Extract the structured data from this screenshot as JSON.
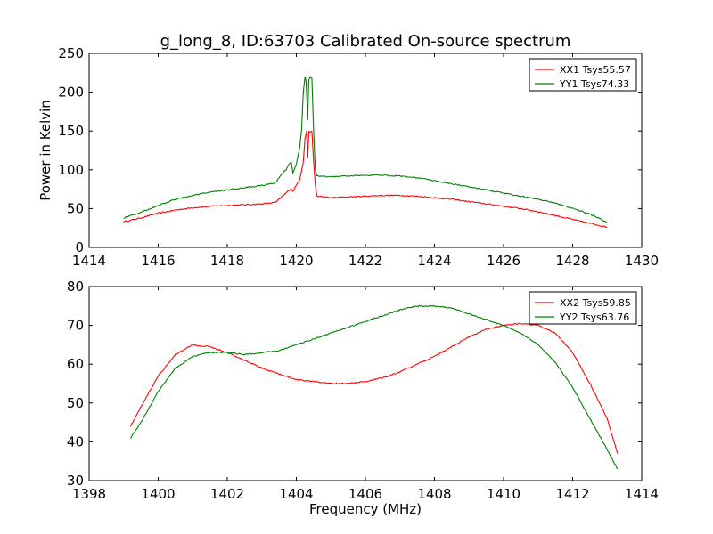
{
  "chart_data": [
    {
      "type": "line",
      "title": "g_long_8, ID:63703 Calibrated On-source spectrum",
      "xlabel": "",
      "ylabel": "Power in Kelvin",
      "xlim": [
        1414,
        1430
      ],
      "ylim": [
        0,
        250
      ],
      "xticks": [
        1414,
        1416,
        1418,
        1420,
        1422,
        1424,
        1426,
        1428,
        1430
      ],
      "yticks": [
        0,
        50,
        100,
        150,
        200,
        250
      ],
      "legend_position": "top-right",
      "colors": {
        "XX1": "#ff0000",
        "YY1": "#008000"
      },
      "series": [
        {
          "name": "XX1 Tsys55.57",
          "color": "#ff0000",
          "points": [
            [
              1415,
              33
            ],
            [
              1415.5,
              38
            ],
            [
              1416,
              44
            ],
            [
              1416.5,
              48
            ],
            [
              1417,
              51
            ],
            [
              1417.5,
              53
            ],
            [
              1418,
              54
            ],
            [
              1418.5,
              55
            ],
            [
              1419,
              56
            ],
            [
              1419.4,
              58
            ],
            [
              1419.5,
              62
            ],
            [
              1419.6,
              66
            ],
            [
              1419.7,
              70
            ],
            [
              1419.8,
              74
            ],
            [
              1419.85,
              76
            ],
            [
              1419.9,
              72
            ],
            [
              1420,
              80
            ],
            [
              1420.1,
              88
            ],
            [
              1420.2,
              110
            ],
            [
              1420.25,
              140
            ],
            [
              1420.3,
              150
            ],
            [
              1420.33,
              115
            ],
            [
              1420.36,
              150
            ],
            [
              1420.4,
              148
            ],
            [
              1420.45,
              150
            ],
            [
              1420.5,
              110
            ],
            [
              1420.55,
              80
            ],
            [
              1420.6,
              66
            ],
            [
              1421,
              64
            ],
            [
              1421.5,
              65
            ],
            [
              1422,
              66
            ],
            [
              1422.5,
              67
            ],
            [
              1423,
              67
            ],
            [
              1423.5,
              66
            ],
            [
              1424,
              64
            ],
            [
              1424.5,
              62
            ],
            [
              1425,
              59
            ],
            [
              1425.5,
              56
            ],
            [
              1426,
              53
            ],
            [
              1426.5,
              50
            ],
            [
              1427,
              46
            ],
            [
              1427.5,
              41
            ],
            [
              1428,
              36
            ],
            [
              1428.5,
              31
            ],
            [
              1429,
              26
            ]
          ]
        },
        {
          "name": "YY1 Tsys74.33",
          "color": "#008000",
          "points": [
            [
              1415,
              38
            ],
            [
              1415.5,
              45
            ],
            [
              1416,
              54
            ],
            [
              1416.5,
              62
            ],
            [
              1417,
              67
            ],
            [
              1417.5,
              71
            ],
            [
              1418,
              74
            ],
            [
              1418.5,
              77
            ],
            [
              1419,
              80
            ],
            [
              1419.4,
              83
            ],
            [
              1419.5,
              90
            ],
            [
              1419.6,
              96
            ],
            [
              1419.7,
              100
            ],
            [
              1419.8,
              108
            ],
            [
              1419.85,
              110
            ],
            [
              1419.9,
              96
            ],
            [
              1420,
              108
            ],
            [
              1420.1,
              130
            ],
            [
              1420.15,
              150
            ],
            [
              1420.2,
              200
            ],
            [
              1420.25,
              220
            ],
            [
              1420.28,
              215
            ],
            [
              1420.3,
              195
            ],
            [
              1420.33,
              165
            ],
            [
              1420.36,
              215
            ],
            [
              1420.4,
              220
            ],
            [
              1420.45,
              218
            ],
            [
              1420.5,
              150
            ],
            [
              1420.55,
              100
            ],
            [
              1420.6,
              92
            ],
            [
              1421,
              91
            ],
            [
              1421.5,
              92
            ],
            [
              1422,
              93
            ],
            [
              1422.5,
              93
            ],
            [
              1423,
              92
            ],
            [
              1423.5,
              90
            ],
            [
              1424,
              86
            ],
            [
              1424.5,
              82
            ],
            [
              1425,
              78
            ],
            [
              1425.5,
              74
            ],
            [
              1426,
              70
            ],
            [
              1426.5,
              66
            ],
            [
              1427,
              62
            ],
            [
              1427.5,
              57
            ],
            [
              1428,
              50
            ],
            [
              1428.5,
              43
            ],
            [
              1429,
              32
            ]
          ]
        }
      ]
    },
    {
      "type": "line",
      "title": "",
      "xlabel": "Frequency (MHz)",
      "ylabel": "",
      "xlim": [
        1398,
        1414
      ],
      "ylim": [
        30,
        80
      ],
      "xticks": [
        1398,
        1400,
        1402,
        1404,
        1406,
        1408,
        1410,
        1412,
        1414
      ],
      "yticks": [
        30,
        40,
        50,
        60,
        70,
        80
      ],
      "legend_position": "top-right",
      "colors": {
        "XX2": "#ff0000",
        "YY2": "#008000"
      },
      "series": [
        {
          "name": "XX2 Tsys59.85",
          "color": "#ff0000",
          "points": [
            [
              1399.2,
              44
            ],
            [
              1399.5,
              49
            ],
            [
              1400,
              57
            ],
            [
              1400.5,
              62.5
            ],
            [
              1401,
              65
            ],
            [
              1401.5,
              64.5
            ],
            [
              1402,
              63
            ],
            [
              1402.5,
              61
            ],
            [
              1403,
              59
            ],
            [
              1403.5,
              57.5
            ],
            [
              1404,
              56
            ],
            [
              1404.5,
              55.5
            ],
            [
              1405,
              55
            ],
            [
              1405.5,
              55
            ],
            [
              1406,
              55.5
            ],
            [
              1406.5,
              56.5
            ],
            [
              1407,
              58
            ],
            [
              1407.5,
              60
            ],
            [
              1408,
              62
            ],
            [
              1408.5,
              64.5
            ],
            [
              1409,
              67
            ],
            [
              1409.5,
              69
            ],
            [
              1410,
              70
            ],
            [
              1410.5,
              70.5
            ],
            [
              1411,
              70
            ],
            [
              1411.5,
              68
            ],
            [
              1412,
              63
            ],
            [
              1412.5,
              55
            ],
            [
              1413,
              46
            ],
            [
              1413.3,
              37
            ]
          ]
        },
        {
          "name": "YY2 Tsys63.76",
          "color": "#008000",
          "points": [
            [
              1399.2,
              41
            ],
            [
              1399.5,
              45
            ],
            [
              1400,
              53
            ],
            [
              1400.5,
              59
            ],
            [
              1401,
              62
            ],
            [
              1401.5,
              63
            ],
            [
              1402,
              63
            ],
            [
              1402.5,
              62.5
            ],
            [
              1403,
              63
            ],
            [
              1403.5,
              63.5
            ],
            [
              1404,
              65
            ],
            [
              1404.5,
              66.5
            ],
            [
              1405,
              68
            ],
            [
              1405.5,
              69.5
            ],
            [
              1406,
              71
            ],
            [
              1406.5,
              72.5
            ],
            [
              1407,
              74
            ],
            [
              1407.5,
              75
            ],
            [
              1408,
              75
            ],
            [
              1408.5,
              74.5
            ],
            [
              1409,
              73
            ],
            [
              1409.5,
              71.5
            ],
            [
              1410,
              70
            ],
            [
              1410.5,
              68
            ],
            [
              1411,
              65
            ],
            [
              1411.5,
              60.5
            ],
            [
              1412,
              54
            ],
            [
              1412.5,
              46
            ],
            [
              1413,
              38
            ],
            [
              1413.3,
              33
            ]
          ]
        }
      ]
    }
  ]
}
